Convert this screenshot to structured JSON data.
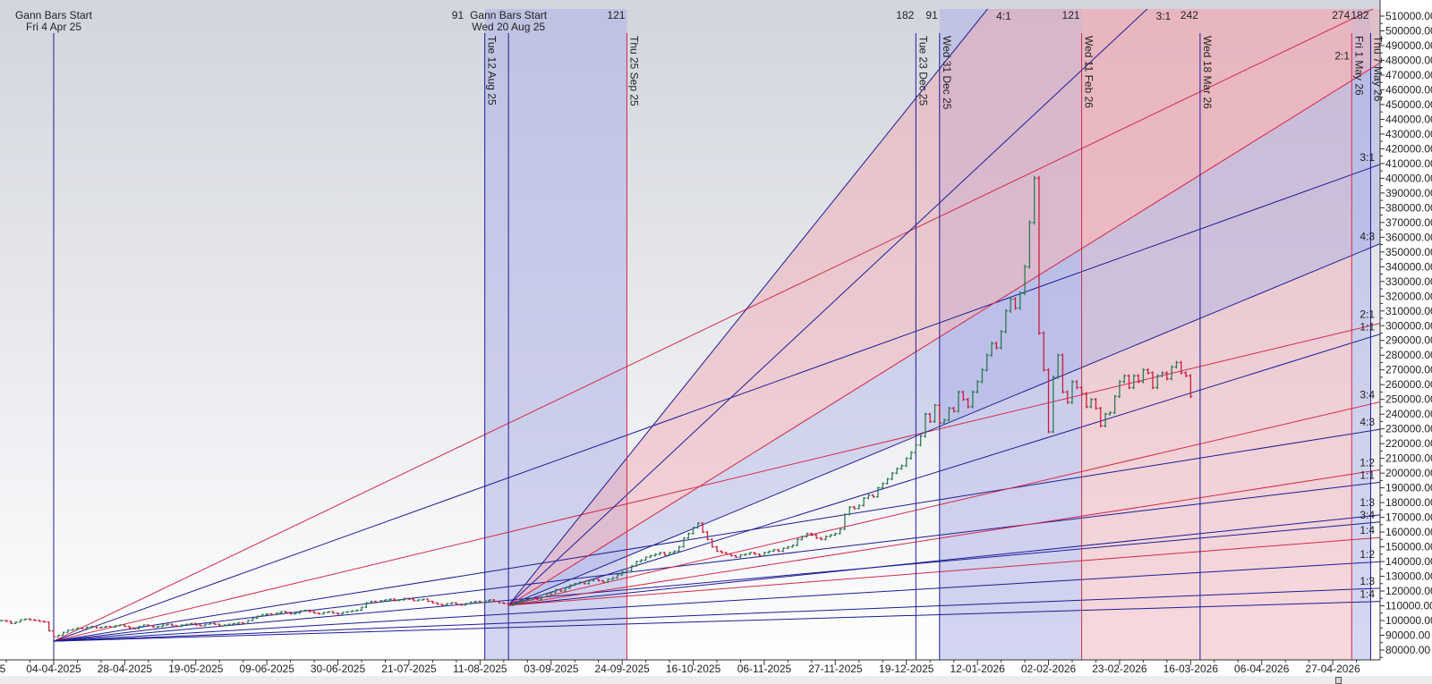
{
  "chart_data": {
    "type": "ohlc",
    "y_axis": {
      "min": 80000,
      "max": 510000,
      "step": 10000,
      "decimals": 2,
      "position": "right"
    },
    "x_ticks": [
      "5",
      "04-04-2025",
      "28-04-2025",
      "19-05-2025",
      "09-06-2025",
      "30-06-2025",
      "21-07-2025",
      "11-08-2025",
      "03-09-2025",
      "24-09-2025",
      "16-10-2025",
      "06-11-2025",
      "27-11-2025",
      "19-12-2025",
      "12-01-2026",
      "02-02-2026",
      "23-02-2026",
      "16-03-2026",
      "06-04-2026",
      "27-04-2026"
    ],
    "bars_per_x_tick": 15,
    "closes": [
      100000,
      99500,
      98000,
      99000,
      100500,
      101000,
      100500,
      100000,
      99500,
      99000,
      93000,
      89000,
      90000,
      92000,
      93500,
      94000,
      95000,
      94500,
      95500,
      96000,
      95000,
      95500,
      96000,
      95500,
      96500,
      97000,
      96000,
      95000,
      94500,
      96000,
      97000,
      96500,
      95500,
      96000,
      97000,
      97500,
      96500,
      96000,
      97000,
      97500,
      98000,
      97000,
      96500,
      97500,
      98000,
      97500,
      96500,
      97000,
      97500,
      98000,
      98500,
      98000,
      100000,
      101500,
      103000,
      104000,
      104500,
      104000,
      105000,
      106000,
      105500,
      104500,
      105000,
      106500,
      107000,
      106000,
      105000,
      104500,
      105500,
      106000,
      105000,
      104500,
      105500,
      106000,
      106500,
      107000,
      109000,
      112000,
      113000,
      112500,
      113500,
      114000,
      114500,
      113500,
      114000,
      115000,
      114500,
      113500,
      114000,
      114500,
      113000,
      112000,
      111000,
      110500,
      111500,
      112000,
      111000,
      110500,
      111500,
      112500,
      113000,
      112500,
      113500,
      114000,
      113000,
      112000,
      111500,
      110300,
      111500,
      112500,
      113500,
      114000,
      115000,
      114500,
      116000,
      118000,
      119000,
      121000,
      120000,
      122000,
      124000,
      125000,
      126000,
      125000,
      127000,
      128000,
      127000,
      126000,
      128000,
      129000,
      131000,
      133000,
      134000,
      137000,
      140000,
      141000,
      143000,
      144000,
      145000,
      146000,
      144500,
      146000,
      147000,
      150000,
      156000,
      159000,
      163000,
      166000,
      160000,
      155000,
      150000,
      147000,
      146000,
      145000,
      144000,
      143000,
      144500,
      145000,
      146000,
      145000,
      144000,
      146000,
      147000,
      148000,
      147000,
      149000,
      150000,
      151000,
      155000,
      157000,
      159000,
      158000,
      156000,
      155000,
      157000,
      158000,
      159000,
      162000,
      172000,
      177000,
      176000,
      178000,
      183000,
      185000,
      184000,
      190000,
      193000,
      196000,
      200000,
      203000,
      205000,
      210000,
      214000,
      219000,
      225000,
      240000,
      235000,
      246000,
      234000,
      236000,
      244000,
      242000,
      255000,
      250000,
      245000,
      255000,
      262000,
      270000,
      280000,
      288000,
      285000,
      296000,
      310000,
      318000,
      312000,
      322000,
      340000,
      370000,
      400000,
      295000,
      270000,
      228000,
      265000,
      280000,
      255000,
      248000,
      262000,
      258000,
      254000,
      245000,
      250000,
      244000,
      232000,
      240000,
      241000,
      252000,
      262000,
      266000,
      258000,
      266000,
      262000,
      270000,
      268000,
      258000,
      266000,
      268000,
      264000,
      272000,
      275000,
      268000,
      266000,
      252000
    ],
    "gann_starts": [
      {
        "title": "Gann Bars Start",
        "date": "Fri 4 Apr 25",
        "price": 86000
      },
      {
        "title": "Gann Bars Start",
        "date": "Wed 20 Aug 25",
        "price": 110300
      }
    ],
    "fans": [
      {
        "start": 0,
        "price_per_bar_1x1": 385,
        "lines": [
          {
            "ratio": "4:1",
            "mult": 4,
            "color": "red",
            "show_label": false
          },
          {
            "ratio": "3:1",
            "mult": 3,
            "color": "blue",
            "show_label": true
          },
          {
            "ratio": "2:1",
            "mult": 2,
            "color": "red",
            "show_label": true
          },
          {
            "ratio": "4:3",
            "mult": 1.3333,
            "color": "blue",
            "show_label": true
          },
          {
            "ratio": "1:1",
            "mult": 1,
            "color": "blue",
            "show_label": true
          },
          {
            "ratio": "3:4",
            "mult": 0.75,
            "color": "blue",
            "show_label": true
          },
          {
            "ratio": "1:2",
            "mult": 0.5,
            "color": "blue",
            "show_label": true
          },
          {
            "ratio": "1:3",
            "mult": 0.3333,
            "color": "blue",
            "show_label": true
          },
          {
            "ratio": "1:4",
            "mult": 0.25,
            "color": "blue",
            "show_label": true
          }
        ]
      },
      {
        "start": 1,
        "price_per_bar_1x1": 1000,
        "lines": [
          {
            "ratio": "4:1",
            "mult": 4,
            "color": "blue",
            "show_label": true
          },
          {
            "ratio": "3:1",
            "mult": 3,
            "color": "blue",
            "show_label": true
          },
          {
            "ratio": "2:1",
            "mult": 2,
            "color": "red",
            "show_label": true
          },
          {
            "ratio": "4:3",
            "mult": 1.3333,
            "color": "blue",
            "show_label": true
          },
          {
            "ratio": "1:1",
            "mult": 1,
            "color": "blue",
            "show_label": true
          },
          {
            "ratio": "3:4",
            "mult": 0.75,
            "color": "red",
            "show_label": true
          },
          {
            "ratio": "1:2",
            "mult": 0.5,
            "color": "red",
            "show_label": true
          },
          {
            "ratio": "1:3",
            "mult": 0.3333,
            "color": "blue",
            "show_label": true
          },
          {
            "ratio": "1:4",
            "mult": 0.25,
            "color": "red",
            "show_label": true
          }
        ]
      }
    ],
    "markers": [
      {
        "fan": 0,
        "count": "91",
        "bars": 91,
        "date": "Tue 12 Aug 25",
        "color": "blue"
      },
      {
        "fan": 0,
        "count": "121",
        "bars": 121,
        "date": "Thu 25 Sep 25",
        "color": "red"
      },
      {
        "fan": 0,
        "count": "182",
        "bars": 182,
        "date": "Tue 23 Dec 25",
        "color": "blue"
      },
      {
        "fan": 1,
        "count": "91",
        "bars": 91,
        "date": "Wed 31 Dec 25",
        "color": "blue"
      },
      {
        "fan": 1,
        "count": "121",
        "bars": 121,
        "date": "Wed 11 Feb 26",
        "color": "red"
      },
      {
        "fan": 0,
        "count": "242",
        "bars": 242,
        "date": "Wed 18 Mar 26",
        "color": "blue"
      },
      {
        "fan": 0,
        "count": "274",
        "bars": 274,
        "date": "Fri 1 May 26",
        "color": "red"
      },
      {
        "fan": 1,
        "count": "182",
        "bars": 182,
        "date": "Thu 7 May 26",
        "color": "blue"
      }
    ]
  },
  "colors": {
    "blue_line": "#1c1c96",
    "red_line": "#d42a4a",
    "up_bar": "#2f7a52",
    "down_bar": "#c81f3c",
    "blue_band": "#aeb2e6",
    "pink_band": "#f0aab4"
  }
}
